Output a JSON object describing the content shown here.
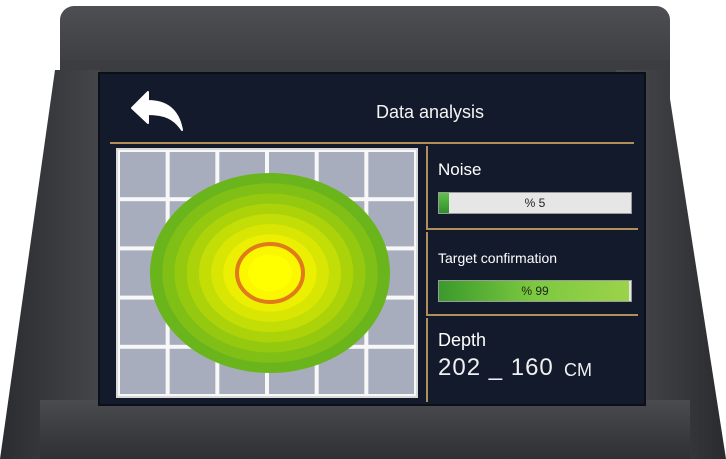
{
  "header": {
    "title": "Data analysis",
    "back_icon": "back-arrow-icon"
  },
  "noise": {
    "label": "Noise",
    "value_text": "% 5",
    "level": 0.05
  },
  "target": {
    "label": "Target confirmation",
    "value_text": "% 99",
    "level": 0.99
  },
  "depth": {
    "label": "Depth",
    "value": "202 _ 160",
    "unit": "CM"
  },
  "colors": {
    "screen_bg": "#121a2c",
    "divider": "#b18f59",
    "grid_cell": "#a8adbd",
    "ring_outer": "#6ab51c",
    "ring_inner": "#ffff00",
    "target_ring": "#e07a1a"
  }
}
